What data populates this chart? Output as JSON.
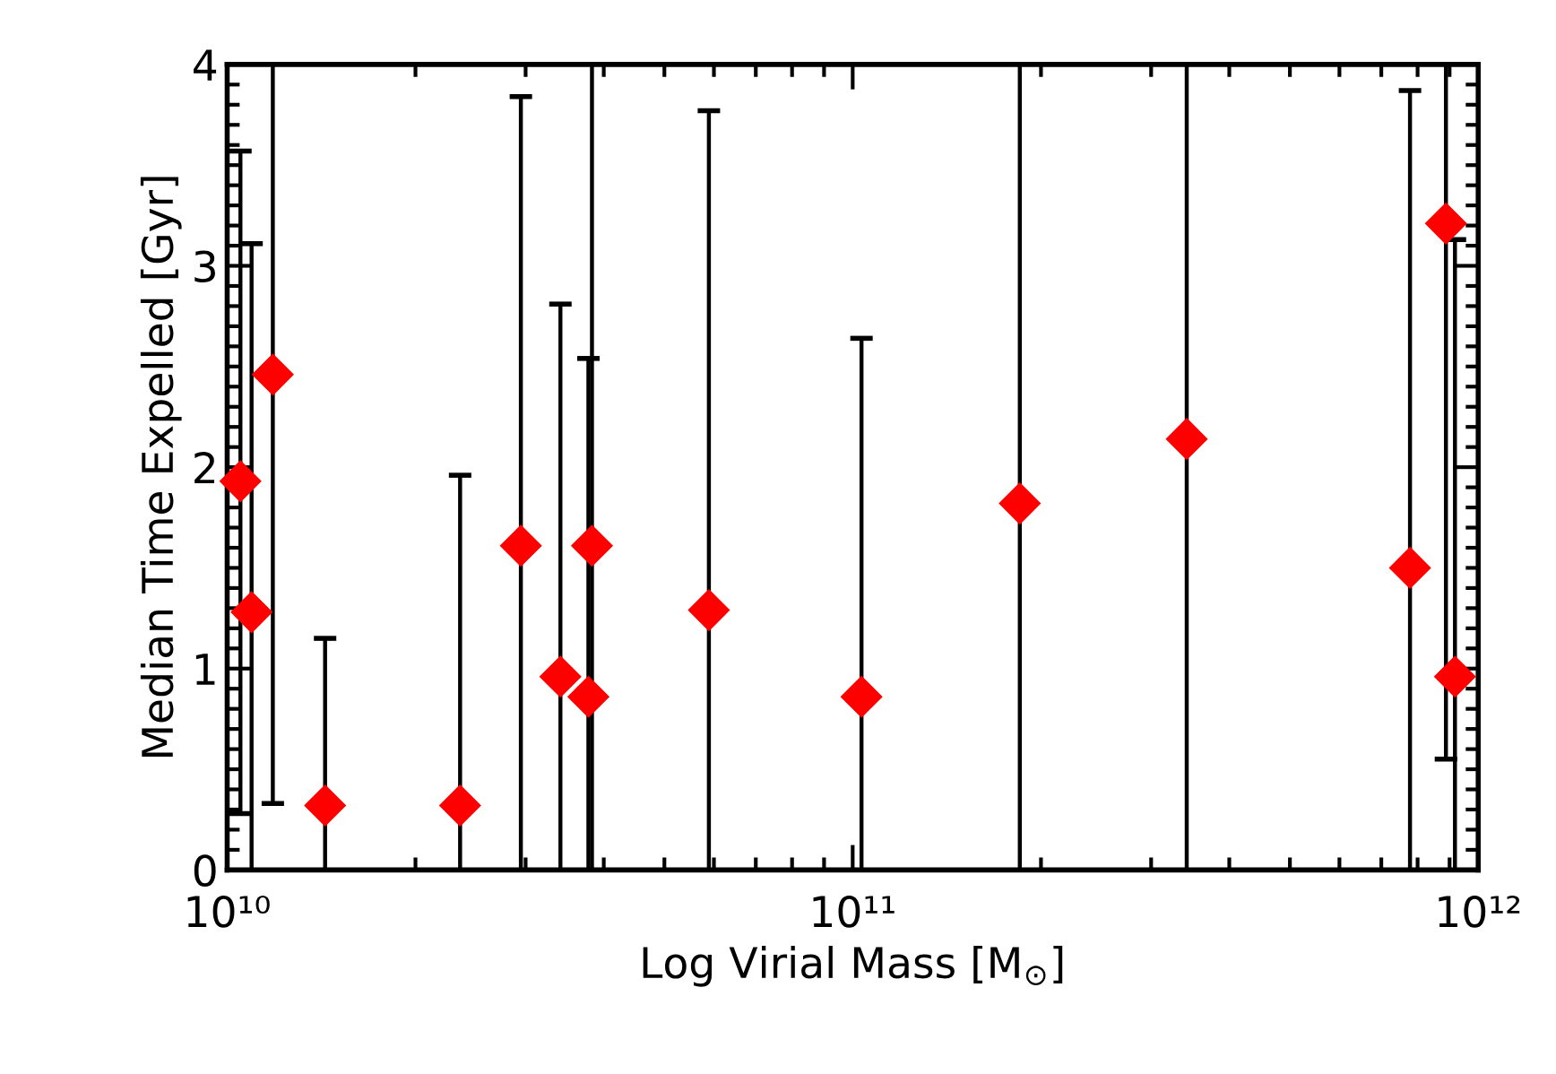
{
  "chart_data": {
    "type": "scatter",
    "xlabel": "Log Virial Mass [M$_{⊙}$]",
    "ylabel": "Median Time Expelled [Gyr]",
    "log": "x",
    "xlim": [
      10000000000.0,
      1000000000000.0
    ],
    "xticks": [
      {
        "value": 10000000000.0,
        "label": "10¹⁰"
      },
      {
        "value": 100000000000.0,
        "label": "10¹¹"
      },
      {
        "value": 1000000000000.0,
        "label": "10¹²"
      }
    ],
    "ylim": [
      0,
      4
    ],
    "yticks": [
      0,
      1,
      2,
      3,
      4
    ],
    "grid": false,
    "marker": "diamond",
    "series": [
      {
        "color": "#ff0000",
        "x": [
          10500000000.0,
          10940000000.0,
          11830000000.0,
          14340000000.0,
          23570000000.0,
          29480000000.0,
          34100000000.0,
          37800000000.0,
          38300000000.0,
          58900000000.0,
          103300000000.0,
          185000000000.0,
          342000000000.0,
          778000000000.0,
          888000000000.0,
          918000000000.0
        ],
        "values": [
          1.93,
          1.28,
          2.46,
          0.32,
          0.32,
          1.61,
          0.96,
          0.86,
          1.61,
          1.29,
          0.86,
          1.82,
          2.14,
          1.5,
          3.21,
          0.96
        ],
        "errors": [
          [
            0.28,
            3.57
          ],
          [
            0,
            3.11
          ],
          [
            0.33,
            4
          ],
          [
            0,
            1.15
          ],
          [
            0,
            1.96
          ],
          [
            0,
            3.84
          ],
          [
            0,
            2.81
          ],
          [
            0,
            2.54
          ],
          [
            0,
            4
          ],
          [
            0,
            3.77
          ],
          [
            0,
            2.64
          ],
          [
            0,
            4
          ],
          [
            0,
            4
          ],
          [
            0,
            3.87
          ],
          [
            0.55,
            4
          ],
          [
            0,
            3.13
          ]
        ]
      }
    ]
  }
}
